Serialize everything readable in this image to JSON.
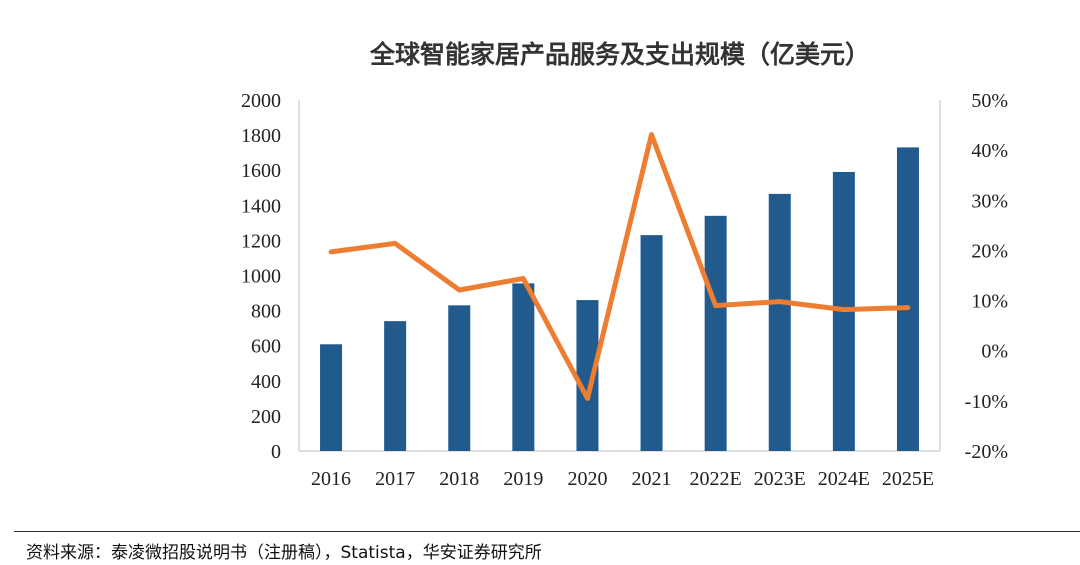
{
  "chart_data": {
    "type": "bar+line",
    "title": "全球智能家居产品服务及支出规模（亿美元）",
    "categories": [
      "2016",
      "2017",
      "2018",
      "2019",
      "2020",
      "2021",
      "2022E",
      "2023E",
      "2024E",
      "2025E"
    ],
    "series": [
      {
        "type": "bar",
        "axis": "left",
        "values": [
          608,
          740,
          830,
          955,
          860,
          1230,
          1340,
          1465,
          1590,
          1730
        ]
      },
      {
        "type": "line",
        "axis": "right",
        "values": [
          19.7,
          21.4,
          12.1,
          14.4,
          -9.5,
          43.1,
          9.0,
          9.8,
          8.2,
          8.6
        ]
      }
    ],
    "left_axis": {
      "ylim": [
        0,
        2000
      ],
      "ticks": [
        "0",
        "200",
        "400",
        "600",
        "800",
        "1000",
        "1200",
        "1400",
        "1600",
        "1800",
        "2000"
      ]
    },
    "right_axis": {
      "ylim": [
        -20,
        50
      ],
      "ticks": [
        "-20%",
        "-10%",
        "0%",
        "10%",
        "20%",
        "30%",
        "40%",
        "50%"
      ]
    },
    "grid": false,
    "legend": "none",
    "colors": {
      "bar": "#215a8c",
      "line": "#ed7d31"
    }
  },
  "footer": {
    "source": "资料来源：泰凌微招股说明书（注册稿），Statista，华安证券研究所"
  }
}
